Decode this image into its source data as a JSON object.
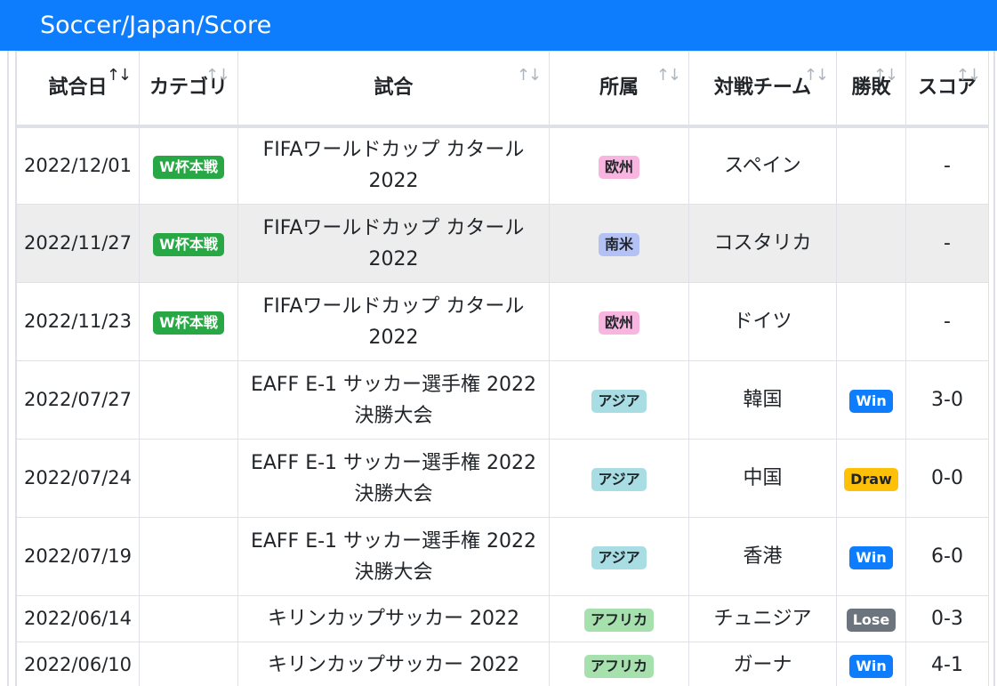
{
  "header": {
    "title": "Soccer/Japan/Score"
  },
  "table": {
    "columns": [
      {
        "label": "試合日",
        "sort_icon": "sort-arrows-icon",
        "active": true
      },
      {
        "label": "カテゴリ",
        "sort_icon": "sort-arrows-icon",
        "active": false
      },
      {
        "label": "試合",
        "sort_icon": "sort-arrows-icon",
        "active": false
      },
      {
        "label": "所属",
        "sort_icon": "sort-arrows-icon",
        "active": false
      },
      {
        "label": "対戦チーム",
        "sort_icon": "sort-arrows-icon",
        "active": false
      },
      {
        "label": "勝敗",
        "sort_icon": "sort-arrows-icon",
        "active": false
      },
      {
        "label": "スコア",
        "sort_icon": "sort-arrows-icon",
        "active": false
      }
    ],
    "sort_glyph": "↑↓",
    "rows": [
      {
        "date": "2022/12/01",
        "category": "W杯本戦",
        "match": "FIFAワールドカップ カタール 2022",
        "region": "欧州",
        "region_type": "eu",
        "opponent": "スペイン",
        "result": "",
        "result_type": "",
        "score": "-"
      },
      {
        "date": "2022/11/27",
        "category": "W杯本戦",
        "match": "FIFAワールドカップ カタール 2022",
        "region": "南米",
        "region_type": "sa",
        "opponent": "コスタリカ",
        "result": "",
        "result_type": "",
        "score": "-"
      },
      {
        "date": "2022/11/23",
        "category": "W杯本戦",
        "match": "FIFAワールドカップ カタール 2022",
        "region": "欧州",
        "region_type": "eu",
        "opponent": "ドイツ",
        "result": "",
        "result_type": "",
        "score": "-"
      },
      {
        "date": "2022/07/27",
        "category": "",
        "match": "EAFF E-1 サッカー選手権 2022 決勝大会",
        "region": "アジア",
        "region_type": "as",
        "opponent": "韓国",
        "result": "Win",
        "result_type": "win",
        "score": "3-0"
      },
      {
        "date": "2022/07/24",
        "category": "",
        "match": "EAFF E-1 サッカー選手権 2022 決勝大会",
        "region": "アジア",
        "region_type": "as",
        "opponent": "中国",
        "result": "Draw",
        "result_type": "draw",
        "score": "0-0"
      },
      {
        "date": "2022/07/19",
        "category": "",
        "match": "EAFF E-1 サッカー選手権 2022 決勝大会",
        "region": "アジア",
        "region_type": "as",
        "opponent": "香港",
        "result": "Win",
        "result_type": "win",
        "score": "6-0"
      },
      {
        "date": "2022/06/14",
        "category": "",
        "match": "キリンカップサッカー 2022",
        "region": "アフリカ",
        "region_type": "af",
        "opponent": "チュニジア",
        "result": "Lose",
        "result_type": "lose",
        "score": "0-3"
      },
      {
        "date": "2022/06/10",
        "category": "",
        "match": "キリンカップサッカー 2022",
        "region": "アフリカ",
        "region_type": "af",
        "opponent": "ガーナ",
        "result": "Win",
        "result_type": "win",
        "score": "4-1"
      }
    ]
  },
  "colors": {
    "header_bg": "#0d7dfd",
    "category_badge": "#28a745",
    "win": "#0d7dfd",
    "draw": "#ffc107",
    "lose": "#6c757d",
    "region_eu": "#f7b5df",
    "region_sa": "#b3c1f4",
    "region_as": "#a8dde4",
    "region_af": "#a6e0ad"
  }
}
